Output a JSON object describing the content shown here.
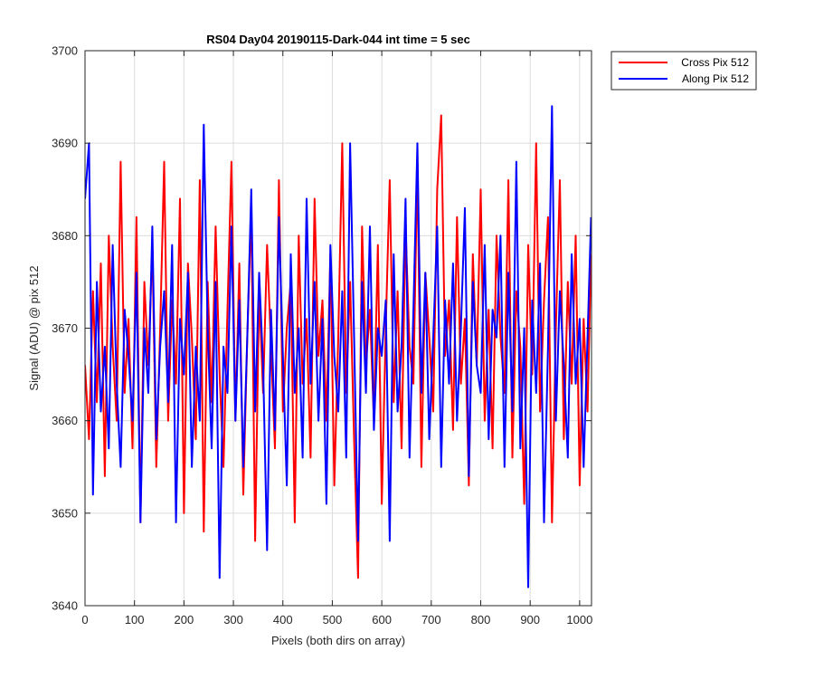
{
  "chart_data": {
    "type": "line",
    "title": "RS04 Day04 20190115-Dark-044 int time = 5 sec",
    "xlabel": "Pixels (both dirs on array)",
    "ylabel": "Signal (ADU) @ pix 512",
    "xlim": [
      0,
      1024
    ],
    "ylim": [
      3640,
      3700
    ],
    "xticks": [
      0,
      100,
      200,
      300,
      400,
      500,
      600,
      700,
      800,
      900,
      1000
    ],
    "yticks": [
      3640,
      3650,
      3660,
      3670,
      3680,
      3690,
      3700
    ],
    "grid": true,
    "legend_position": "outside-top-right",
    "series": [
      {
        "name": "Cross Pix 512",
        "color": "#ff0000",
        "x": [
          0,
          8,
          16,
          24,
          32,
          40,
          48,
          56,
          64,
          72,
          80,
          88,
          96,
          104,
          112,
          120,
          128,
          136,
          144,
          152,
          160,
          168,
          176,
          184,
          192,
          200,
          208,
          216,
          224,
          232,
          240,
          248,
          256,
          264,
          272,
          280,
          288,
          296,
          304,
          312,
          320,
          328,
          336,
          344,
          352,
          360,
          368,
          376,
          384,
          392,
          400,
          408,
          416,
          424,
          432,
          440,
          448,
          456,
          464,
          472,
          480,
          488,
          496,
          504,
          512,
          520,
          528,
          536,
          544,
          552,
          560,
          568,
          576,
          584,
          592,
          600,
          608,
          616,
          624,
          632,
          640,
          648,
          656,
          664,
          672,
          680,
          688,
          696,
          704,
          712,
          720,
          728,
          736,
          744,
          752,
          760,
          768,
          776,
          784,
          792,
          800,
          808,
          816,
          824,
          832,
          840,
          848,
          856,
          864,
          872,
          880,
          888,
          896,
          904,
          912,
          920,
          928,
          936,
          944,
          952,
          960,
          968,
          976,
          984,
          992,
          1000,
          1008,
          1016,
          1023
        ],
        "y": [
          3666,
          3658,
          3674,
          3662,
          3677,
          3654,
          3680,
          3668,
          3660,
          3688,
          3663,
          3671,
          3657,
          3682,
          3649,
          3675,
          3666,
          3679,
          3655,
          3670,
          3688,
          3660,
          3673,
          3664,
          3684,
          3650,
          3677,
          3669,
          3658,
          3686,
          3648,
          3675,
          3662,
          3681,
          3665,
          3655,
          3672,
          3688,
          3660,
          3677,
          3652,
          3669,
          3683,
          3647,
          3674,
          3663,
          3679,
          3668,
          3657,
          3686,
          3661,
          3670,
          3675,
          3649,
          3680,
          3664,
          3671,
          3656,
          3684,
          3667,
          3673,
          3660,
          3678,
          3653,
          3669,
          3690,
          3663,
          3675,
          3658,
          3643,
          3681,
          3666,
          3672,
          3660,
          3679,
          3651,
          3670,
          3686,
          3662,
          3674,
          3657,
          3681,
          3668,
          3664,
          3688,
          3655,
          3676,
          3669,
          3661,
          3685,
          3693,
          3667,
          3673,
          3659,
          3682,
          3664,
          3671,
          3653,
          3678,
          3666,
          3685,
          3660,
          3672,
          3657,
          3680,
          3669,
          3663,
          3686,
          3656,
          3674,
          3668,
          3651,
          3679,
          3665,
          3690,
          3661,
          3673,
          3682,
          3649,
          3670,
          3686,
          3658,
          3675,
          3664,
          3680,
          3653,
          3671,
          3661,
          3678
        ]
      },
      {
        "name": "Along Pix 512",
        "color": "#0000ff",
        "x": [
          0,
          8,
          16,
          24,
          32,
          40,
          48,
          56,
          64,
          72,
          80,
          88,
          96,
          104,
          112,
          120,
          128,
          136,
          144,
          152,
          160,
          168,
          176,
          184,
          192,
          200,
          208,
          216,
          224,
          232,
          240,
          248,
          256,
          264,
          272,
          280,
          288,
          296,
          304,
          312,
          320,
          328,
          336,
          344,
          352,
          360,
          368,
          376,
          384,
          392,
          400,
          408,
          416,
          424,
          432,
          440,
          448,
          456,
          464,
          472,
          480,
          488,
          496,
          504,
          512,
          520,
          528,
          536,
          544,
          552,
          560,
          568,
          576,
          584,
          592,
          600,
          608,
          616,
          624,
          632,
          640,
          648,
          656,
          664,
          672,
          680,
          688,
          696,
          704,
          712,
          720,
          728,
          736,
          744,
          752,
          760,
          768,
          776,
          784,
          792,
          800,
          808,
          816,
          824,
          832,
          840,
          848,
          856,
          864,
          872,
          880,
          888,
          896,
          904,
          912,
          920,
          928,
          936,
          944,
          952,
          960,
          968,
          976,
          984,
          992,
          1000,
          1008,
          1016,
          1023
        ],
        "y": [
          3684,
          3690,
          3652,
          3675,
          3661,
          3668,
          3657,
          3679,
          3664,
          3655,
          3672,
          3667,
          3660,
          3676,
          3649,
          3670,
          3663,
          3681,
          3658,
          3668,
          3674,
          3662,
          3679,
          3649,
          3671,
          3665,
          3676,
          3655,
          3668,
          3660,
          3692,
          3670,
          3657,
          3675,
          3643,
          3668,
          3663,
          3681,
          3660,
          3673,
          3655,
          3669,
          3685,
          3661,
          3676,
          3666,
          3646,
          3672,
          3659,
          3682,
          3667,
          3653,
          3678,
          3663,
          3670,
          3656,
          3684,
          3664,
          3675,
          3660,
          3671,
          3651,
          3679,
          3667,
          3661,
          3674,
          3656,
          3690,
          3669,
          3647,
          3675,
          3663,
          3681,
          3659,
          3670,
          3667,
          3673,
          3647,
          3678,
          3661,
          3668,
          3684,
          3656,
          3672,
          3690,
          3663,
          3676,
          3658,
          3669,
          3681,
          3655,
          3673,
          3664,
          3677,
          3660,
          3670,
          3683,
          3654,
          3675,
          3666,
          3663,
          3679,
          3658,
          3672,
          3669,
          3680,
          3655,
          3676,
          3661,
          3688,
          3657,
          3670,
          3642,
          3673,
          3663,
          3677,
          3649,
          3668,
          3694,
          3660,
          3674,
          3666,
          3656,
          3678,
          3664,
          3671,
          3655,
          3669,
          3682
        ]
      }
    ]
  }
}
